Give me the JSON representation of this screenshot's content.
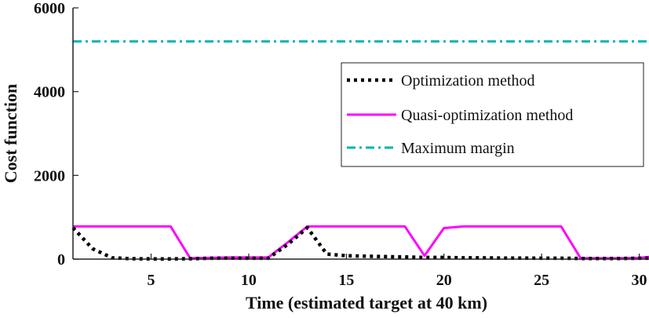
{
  "chart_data": {
    "type": "line",
    "xlabel": "Time (estimated target at 40 km)",
    "ylabel": "Cost function",
    "xlim": [
      1,
      30.5
    ],
    "ylim": [
      0,
      6000
    ],
    "xticks": [
      5,
      10,
      15,
      20,
      25,
      30
    ],
    "yticks": [
      0,
      2000,
      4000,
      6000
    ],
    "legend_position": "top-right",
    "series": [
      {
        "name": "Optimization method",
        "color": "#000000",
        "style": "dotted",
        "points": [
          [
            1,
            750
          ],
          [
            2,
            250
          ],
          [
            3,
            30
          ],
          [
            4,
            10
          ],
          [
            5,
            5
          ],
          [
            6,
            5
          ],
          [
            7,
            10
          ],
          [
            8,
            20
          ],
          [
            9,
            25
          ],
          [
            10,
            20
          ],
          [
            11,
            20
          ],
          [
            12,
            350
          ],
          [
            13,
            750
          ],
          [
            14,
            120
          ],
          [
            15,
            80
          ],
          [
            16,
            70
          ],
          [
            17,
            60
          ],
          [
            18,
            50
          ],
          [
            19,
            40
          ],
          [
            20,
            40
          ],
          [
            21,
            30
          ],
          [
            22,
            30
          ],
          [
            23,
            25
          ],
          [
            24,
            25
          ],
          [
            25,
            20
          ],
          [
            26,
            20
          ],
          [
            27,
            15
          ],
          [
            28,
            15
          ],
          [
            29,
            15
          ],
          [
            30,
            20
          ],
          [
            30.5,
            20
          ]
        ]
      },
      {
        "name": "Quasi-optimization method",
        "color": "#ff00ff",
        "style": "solid",
        "points": [
          [
            1,
            780
          ],
          [
            2,
            780
          ],
          [
            3,
            780
          ],
          [
            4,
            780
          ],
          [
            5,
            780
          ],
          [
            6,
            780
          ],
          [
            7,
            20
          ],
          [
            8,
            30
          ],
          [
            9,
            40
          ],
          [
            10,
            40
          ],
          [
            11,
            40
          ],
          [
            12,
            400
          ],
          [
            13,
            780
          ],
          [
            14,
            780
          ],
          [
            15,
            780
          ],
          [
            16,
            780
          ],
          [
            17,
            780
          ],
          [
            18,
            780
          ],
          [
            19,
            80
          ],
          [
            20,
            740
          ],
          [
            21,
            780
          ],
          [
            22,
            780
          ],
          [
            23,
            780
          ],
          [
            24,
            780
          ],
          [
            25,
            780
          ],
          [
            26,
            780
          ],
          [
            27,
            20
          ],
          [
            28,
            20
          ],
          [
            29,
            20
          ],
          [
            30,
            30
          ],
          [
            30.5,
            50
          ]
        ]
      },
      {
        "name": "Maximum margin",
        "color": "#00b3b3",
        "style": "dashdot",
        "points": [
          [
            1,
            5200
          ],
          [
            30.5,
            5200
          ]
        ]
      }
    ]
  }
}
